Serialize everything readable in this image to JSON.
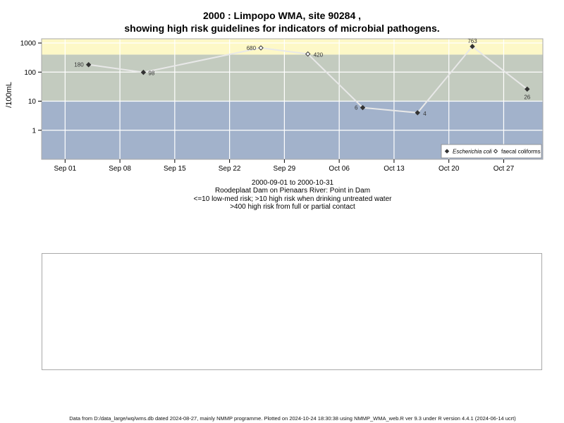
{
  "title_line1": "2000 : Limpopo WMA, site 90284 ,",
  "title_line2": "showing high risk guidelines for indicators of microbial pathogens.",
  "caption": {
    "date_range": "2000-09-01 to 2000-10-31",
    "site": "Roodeplaat Dam on Pienaars River: Point in Dam",
    "risk_low": "<=10 low-med risk; >10 high risk when drinking untreated water",
    "risk_high": ">400 high risk from full or partial contact"
  },
  "footer": "Data from D:/data_large/wq/wms.db dated 2024-08-27, mainly NMMP programme. Plotted on 2024-10-24 18:30:38 using NMMP_WMA_web.R ver 9.3 under R version 4.4.1 (2024-06-14 ucrt)",
  "colors": {
    "band_low": "#a2b2cb",
    "band_mid": "#c3cbbf",
    "band_high": "#fdf8c7",
    "grid": "#ffffff",
    "line": "#e8e8e8",
    "point": "#333333"
  },
  "chart_data": {
    "type": "scatter",
    "ylabel": "/100mL",
    "y_scale": "log",
    "y_ticks": [
      1,
      10,
      100,
      1000
    ],
    "y_tick_labels": [
      "1",
      "10",
      "100",
      "1000"
    ],
    "ylim": [
      0.1,
      1400
    ],
    "xlim": [
      "2000-08-29",
      "2000-11-01"
    ],
    "x_ticks": [
      "2000-09-01",
      "2000-09-08",
      "2000-09-15",
      "2000-09-22",
      "2000-09-29",
      "2000-10-06",
      "2000-10-13",
      "2000-10-20",
      "2000-10-27"
    ],
    "x_tick_labels": [
      "Sep 01",
      "Sep 08",
      "Sep 15",
      "Sep 22",
      "Sep 29",
      "Oct 06",
      "Oct 13",
      "Oct 20",
      "Oct 27"
    ],
    "guidelines": [
      10,
      400
    ],
    "grid": true,
    "legend_position": "bottom-right",
    "series": [
      {
        "name": "Escherichia coli",
        "marker": "filled-diamond",
        "points": [
          {
            "x": "2000-09-04",
            "y": 180,
            "label": "180"
          },
          {
            "x": "2000-09-11",
            "y": 98,
            "label": "98"
          },
          {
            "x": "2000-10-09",
            "y": 6,
            "label": "6"
          },
          {
            "x": "2000-10-16",
            "y": 4,
            "label": "4"
          },
          {
            "x": "2000-10-23",
            "y": 763,
            "label": "763"
          },
          {
            "x": "2000-10-30",
            "y": 26,
            "label": "26"
          }
        ]
      },
      {
        "name": "faecal coliforms",
        "marker": "open-diamond",
        "points": [
          {
            "x": "2000-09-26",
            "y": 680,
            "label": "680"
          },
          {
            "x": "2000-10-02",
            "y": 420,
            "label": "420"
          }
        ]
      }
    ],
    "line_sequence": [
      {
        "x": "2000-09-04",
        "y": 180
      },
      {
        "x": "2000-09-11",
        "y": 98
      },
      {
        "x": "2000-09-26",
        "y": 680
      },
      {
        "x": "2000-10-02",
        "y": 420
      },
      {
        "x": "2000-10-09",
        "y": 6
      },
      {
        "x": "2000-10-16",
        "y": 4
      },
      {
        "x": "2000-10-23",
        "y": 763
      },
      {
        "x": "2000-10-30",
        "y": 26
      }
    ]
  }
}
